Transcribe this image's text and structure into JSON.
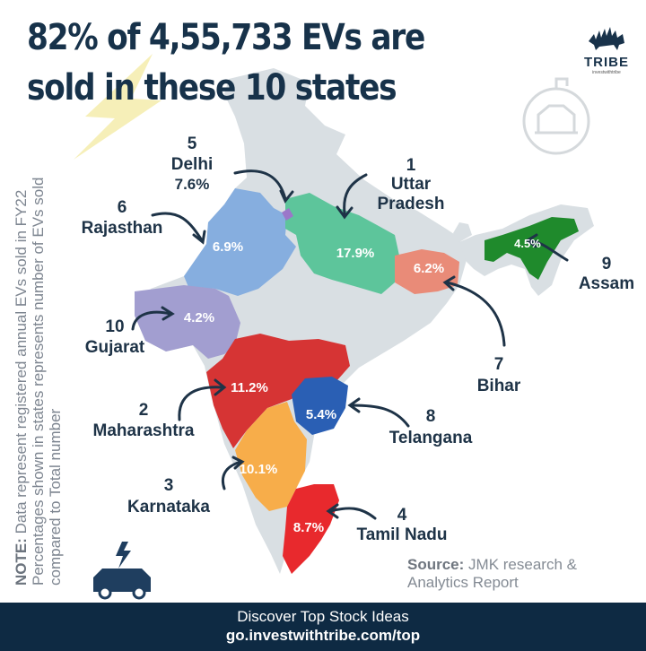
{
  "header": {
    "title": "82% of 4,55,733 EVs are sold in these 10 states"
  },
  "logo": {
    "name": "TRIBE",
    "tagline": "investwithtribe",
    "icon": "bull-icon"
  },
  "note": {
    "label": "NOTE:",
    "text": "Data represent registered annual EVs sold in FY22 Percentages shown in states represents number of EVs sold compared to Total number"
  },
  "source": {
    "label": "Source:",
    "text": "JMK research & Analytics Report"
  },
  "footer": {
    "line1": "Discover Top Stock Ideas",
    "line2": "go.investwithtribe.com/top"
  },
  "colors": {
    "title": "#17324a",
    "map_base": "#d9dfe3",
    "footer": "#0e2a43"
  },
  "chart_data": {
    "type": "map",
    "title": "82% of 4,55,733 EVs are sold in these 10 states",
    "total_evs": 455733,
    "top10_share_percent": 82,
    "states": [
      {
        "rank": "1",
        "name": "Uttar Pradesh",
        "value": 17.9,
        "display": "17.9%",
        "color": "#5dc59b"
      },
      {
        "rank": "2",
        "name": "Maharashtra",
        "value": 11.2,
        "display": "11.2%",
        "color": "#d63434"
      },
      {
        "rank": "3",
        "name": "Karnataka",
        "value": 10.1,
        "display": "10.1%",
        "color": "#f7ad4a"
      },
      {
        "rank": "4",
        "name": "Tamil Nadu",
        "value": 8.7,
        "display": "8.7%",
        "color": "#e8292d"
      },
      {
        "rank": "5",
        "name": "Delhi",
        "value": 7.6,
        "display": "7.6%",
        "color": "#9b77c9"
      },
      {
        "rank": "6",
        "name": "Rajasthan",
        "value": 6.9,
        "display": "6.9%",
        "color": "#86aedf"
      },
      {
        "rank": "7",
        "name": "Bihar",
        "value": 6.2,
        "display": "6.2%",
        "color": "#e98b78"
      },
      {
        "rank": "8",
        "name": "Telangana",
        "value": 5.4,
        "display": "5.4%",
        "color": "#2a5fb4"
      },
      {
        "rank": "9",
        "name": "Assam",
        "value": 4.5,
        "display": "4.5%",
        "color": "#1f8a2c"
      },
      {
        "rank": "10",
        "name": "Gujarat",
        "value": 4.2,
        "display": "4.2%",
        "color": "#a29ed0"
      }
    ]
  }
}
